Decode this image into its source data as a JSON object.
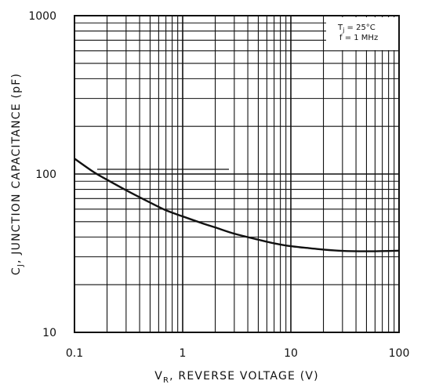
{
  "chart_data": {
    "type": "line",
    "title": "",
    "xlabel": "V_R, REVERSE VOLTAGE (V)",
    "ylabel": "C_J, JUNCTION CAPACITANCE (pF)",
    "x_scale": "log",
    "y_scale": "log",
    "xlim": [
      0.1,
      100
    ],
    "ylim": [
      10,
      1000
    ],
    "grid": true,
    "x_ticks": [
      "0.1",
      "1",
      "10",
      "100"
    ],
    "y_ticks": [
      "10",
      "100",
      "1000"
    ],
    "annotation": {
      "line1_main": "T",
      "line1_sub": "j",
      "line1_rest": " = 25°C",
      "line2": "f = 1 MHz"
    },
    "axis_text": {
      "x_main": "V",
      "x_sub": "R",
      "x_rest": ", REVERSE VOLTAGE (V)",
      "y_main": "C",
      "y_sub": "J",
      "y_rest": ", JUNCTION CAPACITANCE (pF)"
    },
    "series": [
      {
        "x": [
          0.1,
          0.15,
          0.2,
          0.3,
          0.5,
          0.7,
          1,
          1.5,
          2,
          3,
          5,
          7,
          10,
          15,
          20,
          30,
          50,
          70,
          100
        ],
        "y": [
          125,
          103,
          92,
          79,
          66,
          59,
          54,
          49,
          46,
          42,
          38.5,
          36.5,
          35,
          34,
          33.3,
          32.7,
          32.5,
          32.6,
          32.8
        ]
      }
    ]
  }
}
